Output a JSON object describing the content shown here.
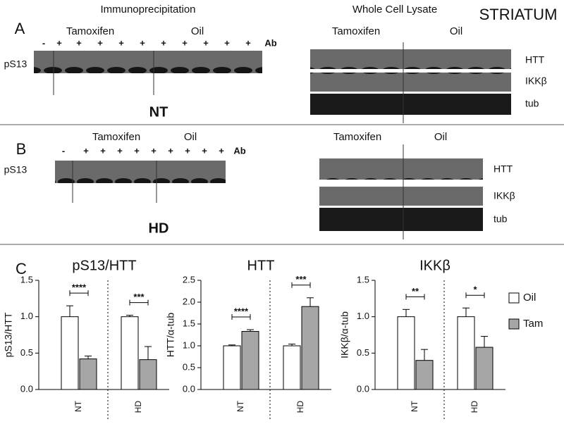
{
  "region_label": "STRIATUM",
  "panel_a": {
    "letter": "A",
    "ip_title": "Immunoprecipitation",
    "wcl_title": "Whole Cell Lysate",
    "ip_groups": [
      "Tamoxifen",
      "Oil"
    ],
    "wcl_groups": [
      "Tamoxifen",
      "Oil"
    ],
    "lane_marks": [
      "-",
      "+",
      "+",
      "+",
      "+",
      "+",
      "+",
      "+",
      "+",
      "+",
      "+"
    ],
    "ab_label": "Ab",
    "row_label": "pS13",
    "blot_labels": [
      "HTT",
      "IKKβ",
      "tub"
    ],
    "genotype": "NT"
  },
  "panel_b": {
    "letter": "B",
    "ip_groups": [
      "Tamoxifen",
      "Oil"
    ],
    "wcl_groups": [
      "Tamoxifen",
      "Oil"
    ],
    "lane_marks": [
      "-",
      "+",
      "+",
      "+",
      "+",
      "+",
      "+",
      "+",
      "+",
      "+"
    ],
    "ab_label": "Ab",
    "row_label": "pS13",
    "blot_labels": [
      "HTT",
      "IKKβ",
      "tub"
    ],
    "genotype": "HD"
  },
  "panel_c": {
    "letter": "C"
  },
  "chart_data": [
    {
      "type": "bar",
      "title": "pS13/HTT",
      "y_label": "pS13/HTT",
      "categories": [
        "NT",
        "HD"
      ],
      "series": [
        {
          "name": "Oil",
          "color": "#ffffff",
          "values": [
            1.0,
            1.0
          ],
          "errors": [
            0.15,
            0.02
          ]
        },
        {
          "name": "Tam",
          "color": "#a6a6a6",
          "values": [
            0.42,
            0.41
          ],
          "errors": [
            0.04,
            0.18
          ]
        }
      ],
      "significance": [
        "****",
        "***"
      ],
      "ylim": [
        0,
        1.5
      ],
      "yticks": [
        {
          "value": 0,
          "label": "0.0"
        },
        {
          "value": 0.5,
          "label": "0.5"
        },
        {
          "value": 1,
          "label": "1.0"
        },
        {
          "value": 1.5,
          "label": "1.5"
        }
      ]
    },
    {
      "type": "bar",
      "title": "HTT",
      "y_label": "HTT/α-tub",
      "categories": [
        "NT",
        "HD"
      ],
      "series": [
        {
          "name": "Oil",
          "color": "#ffffff",
          "values": [
            1.0,
            1.0
          ],
          "errors": [
            0.02,
            0.04
          ]
        },
        {
          "name": "Tam",
          "color": "#a6a6a6",
          "values": [
            1.33,
            1.9
          ],
          "errors": [
            0.04,
            0.2
          ]
        }
      ],
      "significance": [
        "****",
        "***"
      ],
      "ylim": [
        0,
        2.5
      ],
      "yticks": [
        {
          "value": 0,
          "label": "0.0"
        },
        {
          "value": 0.5,
          "label": "0.5"
        },
        {
          "value": 1,
          "label": "1.0"
        },
        {
          "value": 1.5,
          "label": "1.5"
        },
        {
          "value": 2,
          "label": "2.0"
        },
        {
          "value": 2.5,
          "label": "2.5"
        }
      ]
    },
    {
      "type": "bar",
      "title": "IKKβ",
      "y_label": "IKKβ/α-tub",
      "categories": [
        "NT",
        "HD"
      ],
      "series": [
        {
          "name": "Oil",
          "color": "#ffffff",
          "values": [
            1.0,
            1.0
          ],
          "errors": [
            0.1,
            0.12
          ]
        },
        {
          "name": "Tam",
          "color": "#a6a6a6",
          "values": [
            0.4,
            0.58
          ],
          "errors": [
            0.15,
            0.15
          ]
        }
      ],
      "significance": [
        "**",
        "*"
      ],
      "ylim": [
        0,
        1.5
      ],
      "yticks": [
        {
          "value": 0,
          "label": "0.0"
        },
        {
          "value": 0.5,
          "label": "0.5"
        },
        {
          "value": 1,
          "label": "1.0"
        },
        {
          "value": 1.5,
          "label": "1.5"
        }
      ],
      "legend": "right"
    }
  ]
}
